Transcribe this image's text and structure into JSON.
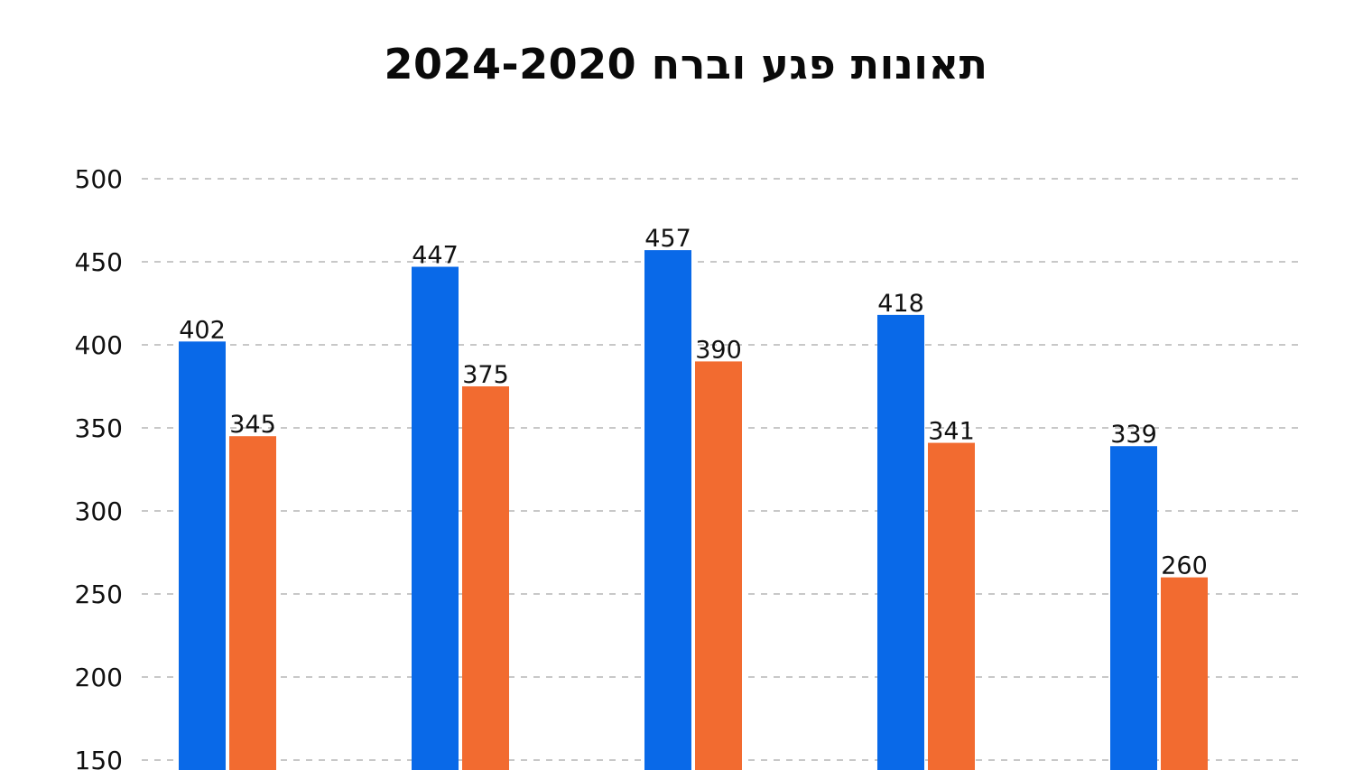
{
  "chart_data": {
    "type": "bar",
    "title": "תאונות פגע וברח 2024-2020",
    "xlabel": "",
    "ylabel": "",
    "ylim": [
      150,
      500
    ],
    "yticks": [
      150,
      200,
      250,
      300,
      350,
      400,
      450,
      500
    ],
    "grid": true,
    "categories": [
      "",
      "",
      "",
      "",
      ""
    ],
    "series": [
      {
        "color": "#0969E8",
        "values": [
          402,
          447,
          457,
          418,
          339
        ],
        "labels": [
          "402",
          "447",
          "457",
          "418",
          "339"
        ]
      },
      {
        "color": "#F26B30",
        "values": [
          345,
          375,
          390,
          341,
          260
        ],
        "labels": [
          "345",
          "375",
          "390",
          "341",
          "260"
        ]
      }
    ]
  }
}
